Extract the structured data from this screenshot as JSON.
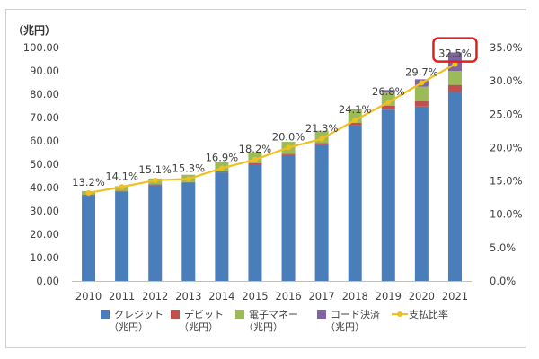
{
  "chart_data": {
    "type": "bar",
    "stacked": true,
    "unit_label": "（兆円）",
    "categories": [
      "2010",
      "2011",
      "2012",
      "2013",
      "2014",
      "2015",
      "2016",
      "2017",
      "2018",
      "2019",
      "2020",
      "2021"
    ],
    "series": [
      {
        "name": "クレジット\n（兆円）",
        "color": "#4a7ebb",
        "values": [
          36.5,
          38.2,
          41.0,
          42.0,
          46.5,
          50.0,
          53.9,
          58.3,
          66.7,
          73.4,
          74.7,
          81.0
        ]
      },
      {
        "name": "デビット\n（兆円）",
        "color": "#c0504d",
        "values": [
          0.4,
          0.4,
          0.4,
          0.4,
          0.4,
          0.5,
          0.6,
          0.8,
          1.1,
          1.7,
          2.5,
          3.0
        ]
      },
      {
        "name": "電子マネー\n（兆円）",
        "color": "#9bbb59",
        "values": [
          1.6,
          2.0,
          2.5,
          3.1,
          4.0,
          4.6,
          5.1,
          5.2,
          5.5,
          5.8,
          6.0,
          6.0
        ]
      },
      {
        "name": "コード決済\n（兆円）",
        "color": "#8064a2",
        "values": [
          0,
          0,
          0,
          0,
          0,
          0,
          0,
          0,
          0.2,
          0.9,
          3.2,
          7.9
        ]
      }
    ],
    "line_series": {
      "name": "支払比率",
      "color": "#f0c020",
      "values": [
        13.2,
        14.1,
        15.1,
        15.3,
        16.9,
        18.2,
        20.0,
        21.3,
        24.1,
        26.8,
        29.7,
        32.5
      ],
      "labels": [
        "13.2%",
        "14.1%",
        "15.1%",
        "15.3%",
        "16.9%",
        "18.2%",
        "20.0%",
        "21.3%",
        "24.1%",
        "26.8%",
        "29.7%",
        "32.5%"
      ],
      "highlighted_index": 11,
      "highlight_color": "#e02020"
    },
    "y_left": {
      "min": 0,
      "max": 100,
      "step": 10,
      "ticks": [
        "0.00",
        "10.00",
        "20.00",
        "30.00",
        "40.00",
        "50.00",
        "60.00",
        "70.00",
        "80.00",
        "90.00",
        "100.00"
      ]
    },
    "y_right": {
      "min": 0,
      "max": 35,
      "step": 5,
      "ticks": [
        "0.0%",
        "5.0%",
        "10.0%",
        "15.0%",
        "20.0%",
        "25.0%",
        "30.0%",
        "35.0%"
      ]
    },
    "grid": false,
    "legend_position": "bottom"
  }
}
